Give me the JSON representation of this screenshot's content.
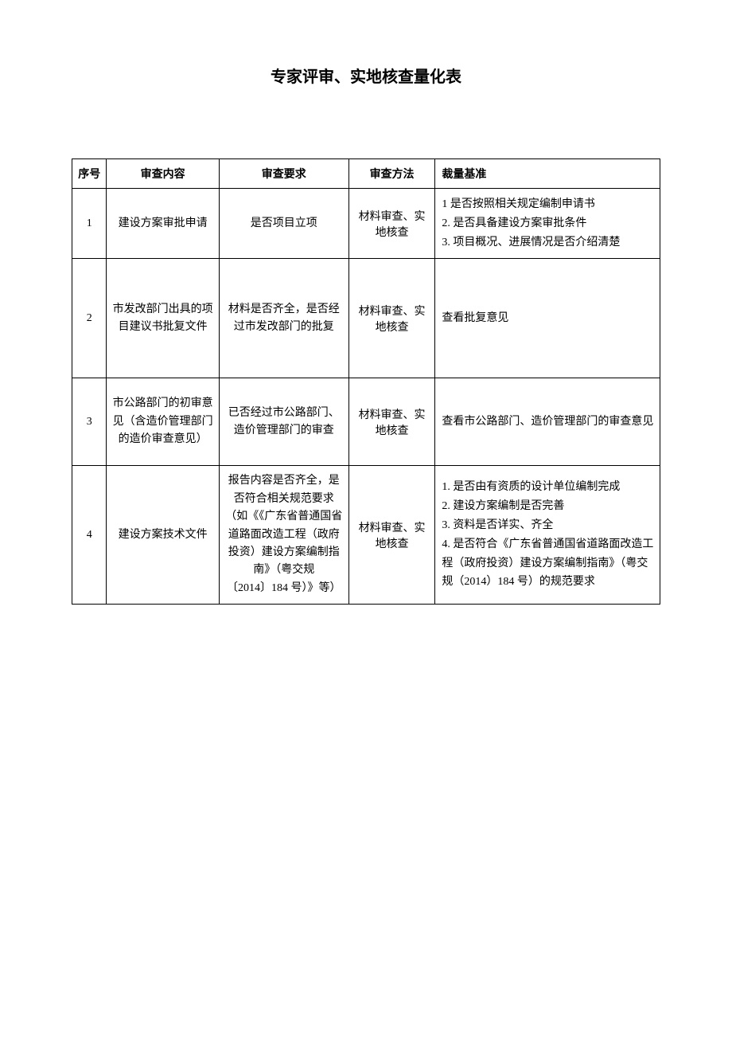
{
  "title": "专家评审、实地核查量化表",
  "columns": {
    "seq": "序号",
    "content": "审查内容",
    "req": "审查要求",
    "method": "审查方法",
    "basis": "裁量基准"
  },
  "rows": [
    {
      "seq": "1",
      "content": "建设方案审批申请",
      "req": "是否项目立项",
      "method": "材料审查、实地核查",
      "basis": "1 是否按照相关规定编制申请书\n2. 是否具备建设方案审批条件\n3. 项目概况、进展情况是否介绍清楚"
    },
    {
      "seq": "2",
      "content": "市发改部门出具的项目建议书批复文件",
      "req": "材料是否齐全，是否经过市发改部门的批复",
      "method": "材料审查、实地核查",
      "basis": "查看批复意见"
    },
    {
      "seq": "3",
      "content": "市公路部门的初审意见（含造价管理部门的造价审查意见）",
      "req": "已否经过市公路部门、造价管理部门的审查",
      "method": "材料审查、实地核查",
      "basis": "查看市公路部门、造价管理部门的审查意见"
    },
    {
      "seq": "4",
      "content": "建设方案技术文件",
      "req": "报告内容是否齐全，是否符合相关规范要求（如《《广东省普通国省道路面改造工程（政府投资）建设方案编制指南》（粤交规\n〔2014〕184 号）》等）",
      "method": "材料审查、实地核查",
      "basis": "1. 是否由有资质的设计单位编制完成\n2. 建设方案编制是否完善\n3. 资料是否详实、齐全\n4. 是否符合《广东省普通国省道路面改造工程（政府投资）建设方案编制指南》（粤交规（2014）184 号）的规范要求"
    }
  ]
}
